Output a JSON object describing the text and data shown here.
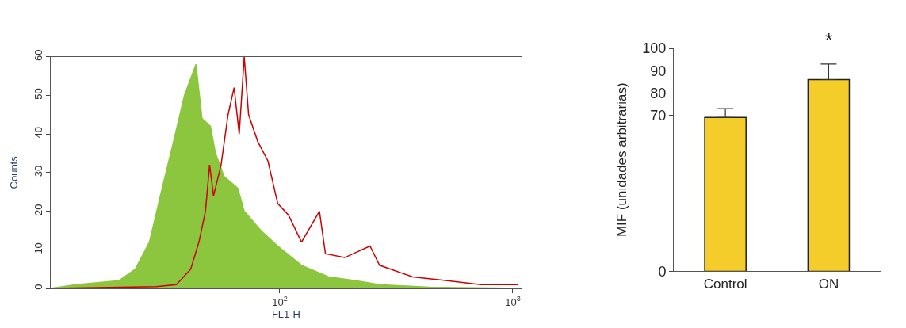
{
  "chart_data": [
    {
      "type": "area",
      "xlabel": "FL1-H",
      "ylabel": "Counts",
      "log": "x",
      "xlim": [
        10.4,
        1090
      ],
      "ylim": [
        0,
        60
      ],
      "xticks": [
        {
          "value": 100,
          "label": "10$^{2}$"
        },
        {
          "value": 1000,
          "label": "10$^{3}$"
        }
      ],
      "yticks": [
        0,
        10,
        20,
        30,
        40,
        50,
        60
      ],
      "series": [
        {
          "type": "area",
          "color": "#8cc63f",
          "x": [
            10.4,
            13.4,
            20.4,
            24,
            27.6,
            31.6,
            35,
            39,
            43.7,
            46.4,
            50.4,
            53,
            57.7,
            66,
            70.4,
            83,
            98,
            124,
            162,
            212,
            268,
            438,
            1090
          ],
          "values": [
            0,
            1,
            2,
            5,
            12,
            27,
            38,
            50,
            58,
            44,
            42,
            35,
            29,
            26,
            20,
            15,
            11,
            6,
            3,
            2,
            1,
            0.3,
            0
          ]
        },
        {
          "type": "line",
          "color": "#cc0000",
          "x": [
            10.4,
            29.5,
            36,
            41.5,
            45,
            48,
            50,
            52,
            56,
            60,
            63.7,
            67,
            70.4,
            73.5,
            80.5,
            89,
            98,
            109,
            124,
            148,
            157,
            190,
            244,
            268,
            372,
            524,
            728,
            1050
          ],
          "values": [
            0,
            0.5,
            1,
            5,
            12,
            20,
            32,
            24,
            32,
            45,
            52,
            40,
            60,
            45,
            38,
            33,
            22,
            19,
            12,
            20,
            9,
            8,
            11,
            6,
            3,
            2,
            1,
            1
          ]
        }
      ]
    },
    {
      "type": "bar",
      "ylabel": "MIF (unidades arbitrarias)",
      "categories": [
        "Control",
        "ON"
      ],
      "values": [
        69,
        86
      ],
      "color": "#f5cd2a",
      "errors": [
        [
          69,
          73
        ],
        [
          86,
          93
        ]
      ],
      "ylim": [
        0,
        100
      ],
      "yticks": [
        0,
        70,
        80,
        90,
        100
      ],
      "annotations": [
        "*"
      ]
    }
  ]
}
